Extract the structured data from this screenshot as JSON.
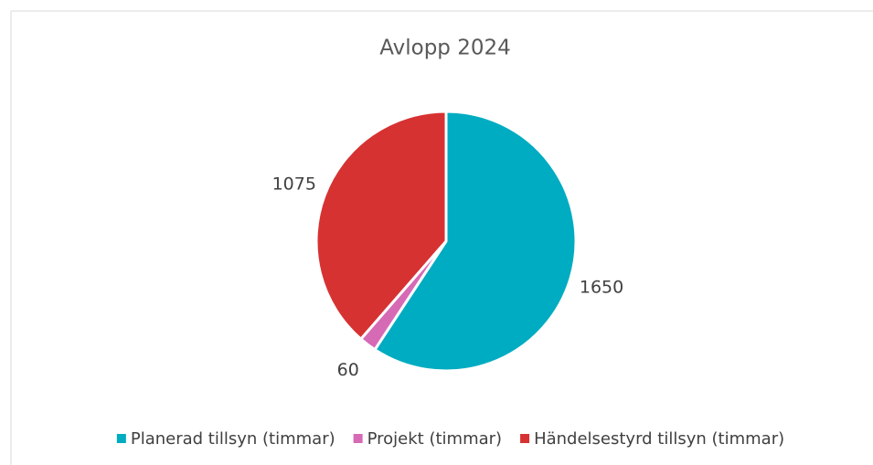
{
  "chart_data": {
    "type": "pie",
    "title": "Avlopp 2024",
    "categories": [
      "Planerad tillsyn (timmar)",
      "Projekt (timmar)",
      "Händelsestyrd tillsyn (timmar)"
    ],
    "values": [
      1650,
      60,
      1075
    ],
    "colors": [
      "#00acc1",
      "#d66ab5",
      "#d63232"
    ],
    "legend": "bottom"
  }
}
